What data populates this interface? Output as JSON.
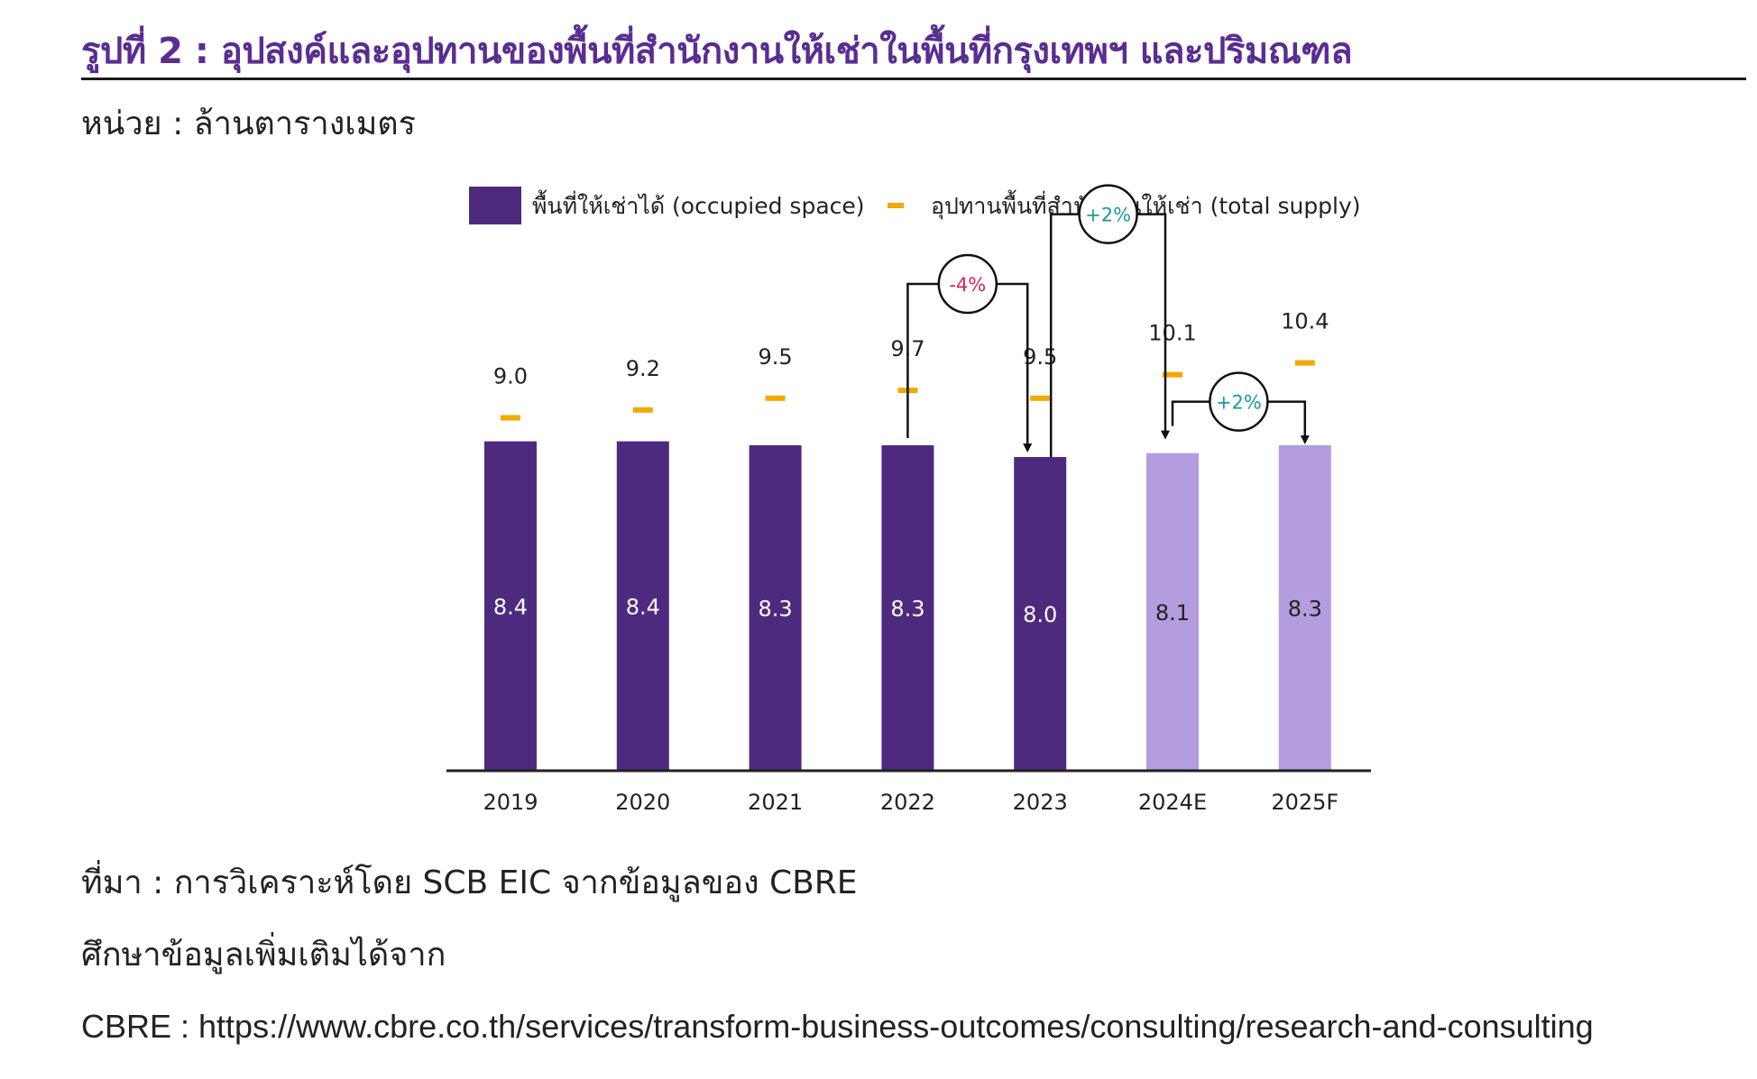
{
  "title": "รูปที่ 2 : อุปสงค์และอุปทานของพื้นที่สำนักงานให้เช่าในพื้นที่กรุงเทพฯ และปริมณฑล",
  "unit": "หน่วย : ล้านตารางเมตร",
  "source": "ที่มา : การวิเคราะห์โดย SCB EIC จากข้อมูลของ CBRE",
  "more_info": "ศึกษาข้อมูลเพิ่มเติมได้จาก",
  "link": "CBRE : https://www.cbre.co.th/services/transform-business-outcomes/consulting/research-and-consulting",
  "colors": {
    "actual": "#4e2a7f",
    "forecast": "#b39ddf",
    "supply": "#f2a900",
    "negative": "#d6245b",
    "positive": "#1a9a9a"
  },
  "chart_data": {
    "type": "bar",
    "categories": [
      "2019",
      "2020",
      "2021",
      "2022",
      "2023",
      "2024E",
      "2025F"
    ],
    "series": [
      {
        "name": "พื้นที่ให้เช่าได้ (occupied space)",
        "kind": "bar",
        "values": [
          8.4,
          8.4,
          8.3,
          8.3,
          8.0,
          8.1,
          8.3
        ],
        "labels": [
          "8.4",
          "8.4",
          "8.3",
          "8.3",
          "8.0",
          "8.1",
          "8.3"
        ],
        "forecast": [
          false,
          false,
          false,
          false,
          false,
          true,
          true
        ]
      },
      {
        "name": "อุปทานพื้นที่สำนักงานให้เช่า (total supply)",
        "kind": "marker",
        "values": [
          9.0,
          9.2,
          9.5,
          9.7,
          9.5,
          10.1,
          10.4
        ],
        "labels": [
          "9.0",
          "9.2",
          "9.5",
          "9.7",
          "9.5",
          "10.1",
          "10.4"
        ]
      }
    ],
    "annotations": [
      {
        "from": "2022",
        "to": "2023",
        "label": "-4%",
        "sign": "negative"
      },
      {
        "from": "2023",
        "to": "2024E",
        "label": "+2%",
        "sign": "positive"
      },
      {
        "from": "2024E",
        "to": "2025F",
        "label": "+2%",
        "sign": "positive"
      }
    ],
    "legend_position": "top"
  }
}
